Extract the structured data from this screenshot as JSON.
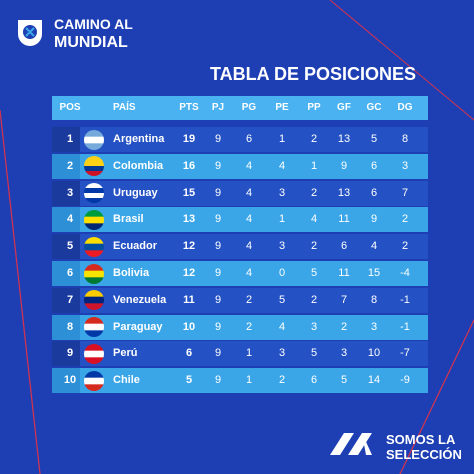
{
  "header": {
    "logo_line1": "CAMINO AL",
    "logo_line2": "MUNDIAL"
  },
  "title": "TABLA DE POSICIONES",
  "table": {
    "columns": [
      "POS",
      "PAÍS",
      "PTS",
      "PJ",
      "PG",
      "PE",
      "PP",
      "GF",
      "GC",
      "DG"
    ],
    "rows": [
      [
        1,
        "Argentina",
        19,
        9,
        6,
        1,
        2,
        13,
        5,
        8
      ],
      [
        2,
        "Colombia",
        16,
        9,
        4,
        4,
        1,
        9,
        6,
        3
      ],
      [
        3,
        "Uruguay",
        15,
        9,
        4,
        3,
        2,
        13,
        6,
        7
      ],
      [
        4,
        "Brasil",
        13,
        9,
        4,
        1,
        4,
        11,
        9,
        2
      ],
      [
        5,
        "Ecuador",
        12,
        9,
        4,
        3,
        2,
        6,
        4,
        2
      ],
      [
        6,
        "Bolivia",
        12,
        9,
        4,
        0,
        5,
        11,
        15,
        -4
      ],
      [
        7,
        "Venezuela",
        11,
        9,
        2,
        5,
        2,
        7,
        8,
        -1
      ],
      [
        8,
        "Paraguay",
        10,
        9,
        2,
        4,
        3,
        2,
        3,
        -1
      ],
      [
        9,
        "Perú",
        6,
        9,
        1,
        3,
        5,
        3,
        10,
        -7
      ],
      [
        10,
        "Chile",
        5,
        9,
        1,
        2,
        6,
        5,
        14,
        -9
      ]
    ]
  },
  "footer": {
    "brand_line1": "SOMOS LA",
    "brand_line2": "SELECCIÓN"
  }
}
